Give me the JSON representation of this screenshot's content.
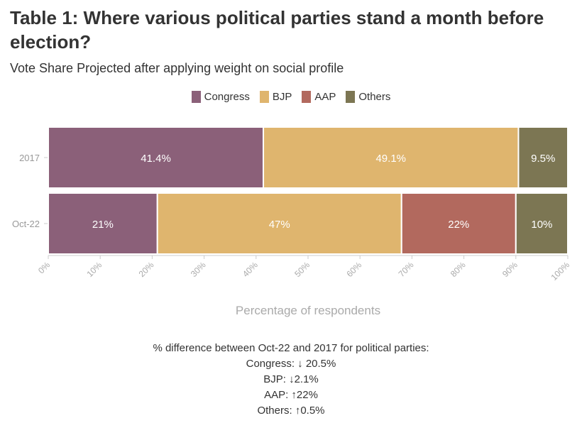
{
  "title": "Table 1: Where various political parties stand a month before election?",
  "subtitle": "Vote Share Projected after applying weight on social profile",
  "legend": [
    {
      "label": "Congress",
      "color": "#8b6079"
    },
    {
      "label": "BJP",
      "color": "#dfb56e"
    },
    {
      "label": "AAP",
      "color": "#b2695e"
    },
    {
      "label": "Others",
      "color": "#7c7653"
    }
  ],
  "chart_data": {
    "type": "bar",
    "orientation": "horizontal",
    "stacked": true,
    "categories": [
      "2017",
      "Oct-22"
    ],
    "series": [
      {
        "name": "Congress",
        "color": "#8b6079",
        "values": [
          41.4,
          21
        ],
        "labels": [
          "41.4%",
          "21%"
        ]
      },
      {
        "name": "BJP",
        "color": "#dfb56e",
        "values": [
          49.1,
          47
        ],
        "labels": [
          "49.1%",
          "47%"
        ]
      },
      {
        "name": "AAP",
        "color": "#b2695e",
        "values": [
          0,
          22
        ],
        "labels": [
          "",
          "22%"
        ]
      },
      {
        "name": "Others",
        "color": "#7c7653",
        "values": [
          9.5,
          10
        ],
        "labels": [
          "9.5%",
          "10%"
        ]
      }
    ],
    "xlabel": "Percentage of respondents",
    "ylabel": "",
    "xlim": [
      0,
      100
    ],
    "xticks": [
      "0%",
      "10%",
      "20%",
      "30%",
      "40%",
      "50%",
      "60%",
      "70%",
      "80%",
      "90%",
      "100%"
    ],
    "grid": false,
    "legend_position": "top-center"
  },
  "footnote": {
    "heading": "% difference between Oct-22 and 2017 for political parties:",
    "lines": [
      "Congress: ↓ 20.5%",
      "BJP: ↓2.1%",
      "AAP: ↑22%",
      "Others: ↑0.5%"
    ]
  }
}
